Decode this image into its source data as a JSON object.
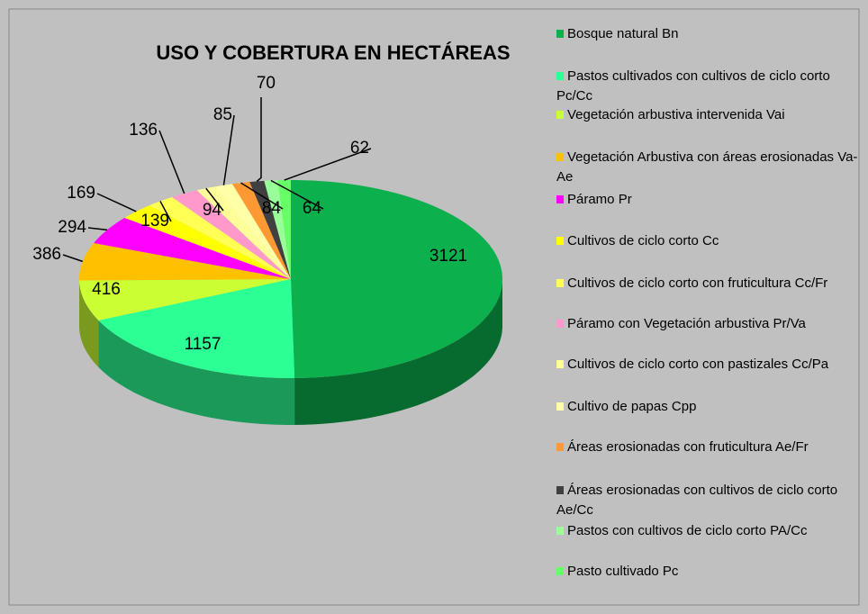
{
  "chart_data": {
    "type": "pie3d",
    "title": "USO Y COBERTURA EN HECTÁREAS",
    "categories": [
      "Bosque natural Bn",
      "Pastos cultivados con cultivos de ciclo corto Pc/Cc",
      "Vegetación arbustiva intervenida  Vai",
      "Vegetación Arbustiva con áreas erosionadas Va-Ae",
      "Páramo Pr",
      "Cultivos de ciclo corto Cc",
      "Cultivos de ciclo corto con fruticultura  Cc/Fr",
      "Páramo con Vegetación arbustiva Pr/Va",
      "Cultivos de ciclo corto con pastizales Cc/Pa",
      "Cultivo de papas Cpp",
      "Áreas erosionadas con fruticultura Ae/Fr",
      "Áreas erosionadas con cultivos de ciclo corto  Ae/Cc",
      "Pastos con cultivos de ciclo corto PA/Cc",
      "Pasto cultivado   Pc"
    ],
    "values": [
      3121,
      1157,
      416,
      386,
      294,
      169,
      139,
      136,
      94,
      85,
      84,
      70,
      64,
      62
    ],
    "colors": [
      "#0cb04c",
      "#2cff94",
      "#ccff33",
      "#ffc000",
      "#ff00ff",
      "#ffff00",
      "#ffff55",
      "#ff99cc",
      "#ffff99",
      "#ffffa8",
      "#ff9933",
      "#404040",
      "#99ff99",
      "#66ff66"
    ],
    "legend": "right"
  }
}
